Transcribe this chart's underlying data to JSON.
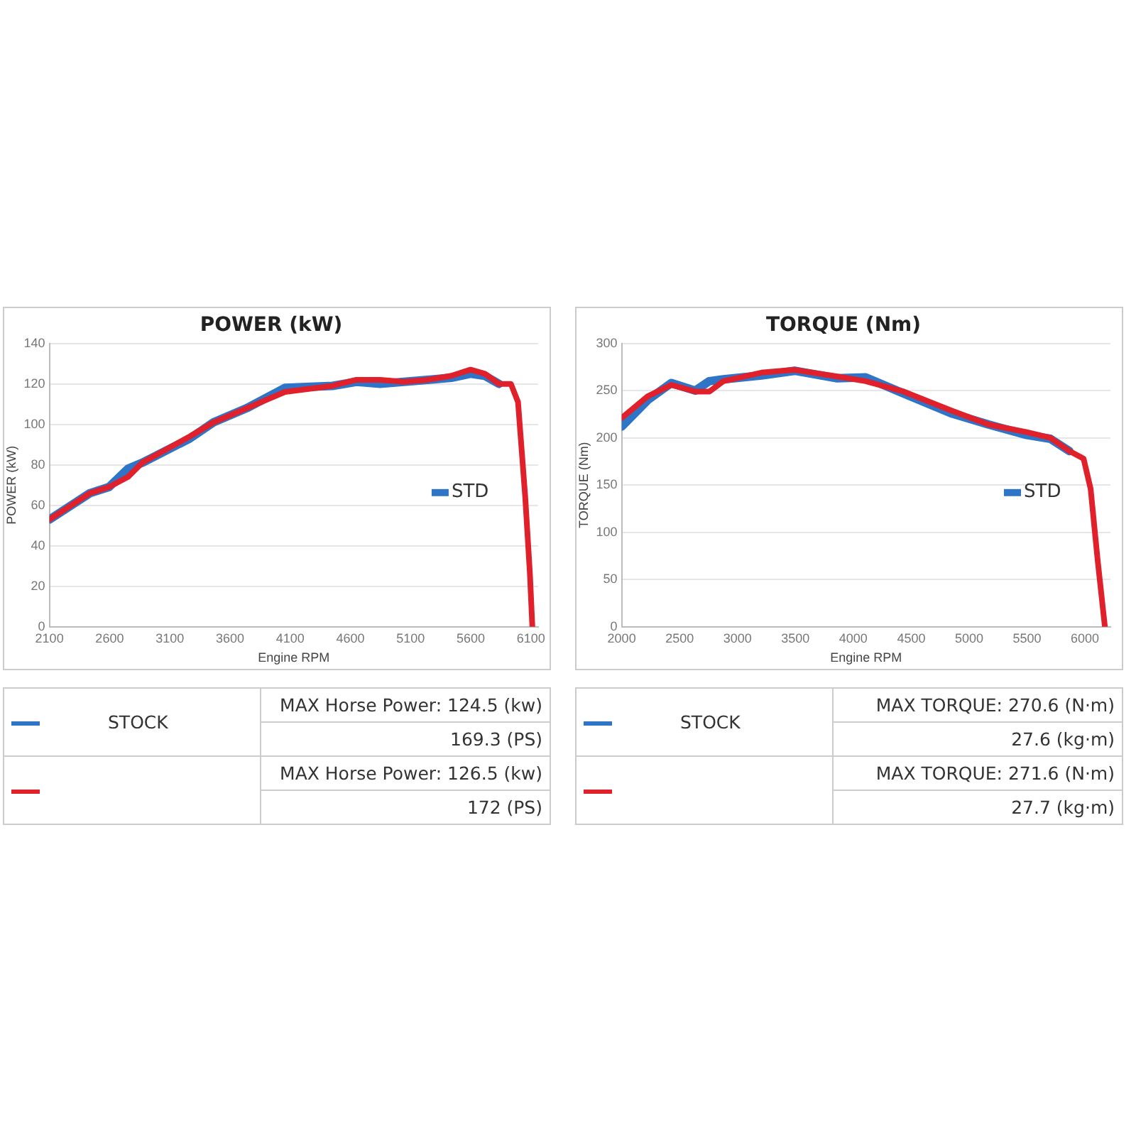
{
  "chart_data": [
    {
      "type": "line",
      "title": "POWER (kW)",
      "xlabel": "Engine RPM",
      "ylabel": "POWER (kW)",
      "xlim": [
        2100,
        6160
      ],
      "xticks": [
        2100,
        2600,
        3100,
        3600,
        4100,
        4600,
        5100,
        5600,
        6100
      ],
      "ylim": [
        0,
        140
      ],
      "yticks": [
        0,
        20,
        40,
        60,
        80,
        100,
        120,
        140
      ],
      "grid": "y",
      "legend": "bottom right",
      "marker": "none",
      "line_style": "solid",
      "x": [
        2100,
        2436,
        2594,
        2752,
        2870,
        3266,
        3464,
        3740,
        4057,
        4452,
        4650,
        4847,
        5045,
        5243,
        5440,
        5598,
        5717,
        5835,
        5934,
        5993,
        6053,
        6092,
        6112
      ],
      "series": [
        {
          "name": "STD",
          "color": "#2e75c8",
          "values": [
            53,
            66,
            69,
            78,
            81,
            93,
            101,
            108,
            118,
            119,
            121,
            120,
            121,
            122,
            123,
            125,
            124,
            120,
            null,
            null,
            null,
            null,
            null
          ]
        },
        {
          "color": "#e0202a",
          "values": [
            53,
            66,
            69,
            74,
            81,
            94,
            101,
            108,
            116,
            119,
            122,
            122,
            121,
            122,
            124,
            127,
            125,
            120,
            120,
            111,
            64,
            26,
            0
          ]
        }
      ],
      "annotations": [
        "STOCK",
        "MAX Horse Power: 124.5 (kw)",
        "169.3 (PS)",
        "MAX Horse Power: 126.5 (kw)",
        "172 (PS)"
      ]
    },
    {
      "type": "line",
      "title": "TORQUE (Nm)",
      "xlabel": "Engine RPM",
      "ylabel": "TORQUE (Nm)",
      "xlim": [
        2000,
        6220
      ],
      "xticks": [
        2000,
        2500,
        3000,
        3500,
        4000,
        4500,
        5000,
        5500,
        6000
      ],
      "ylim": [
        0,
        300
      ],
      "yticks": [
        0,
        50,
        100,
        150,
        200,
        250,
        300
      ],
      "grid": "y",
      "legend": "bottom right",
      "marker": "none",
      "line_style": "solid",
      "x": [
        2000,
        2225,
        2429,
        2634,
        2757,
        2879,
        3207,
        3493,
        3861,
        4106,
        4434,
        4843,
        5170,
        5497,
        5701,
        5865,
        5988,
        6049,
        6110,
        6172
      ],
      "series": [
        {
          "name": "STD",
          "color": "#2e75c8",
          "values": [
            212,
            240,
            258,
            250,
            260,
            262,
            266,
            271,
            263,
            264,
            247,
            226,
            214,
            203,
            199,
            186,
            null,
            null,
            null,
            null
          ]
        },
        {
          "color": "#e0202a",
          "values": [
            221,
            244,
            256,
            249,
            249,
            260,
            269,
            272,
            265,
            260,
            249,
            229,
            214,
            206,
            200,
            186,
            178,
            146,
            70,
            0
          ]
        }
      ],
      "annotations": [
        "STOCK",
        "MAX TORQUE: 270.6 (N·m)",
        "27.6 (kg·m)",
        "MAX TORQUE: 271.6 (N·m)",
        "27.7 (kg·m)"
      ]
    }
  ]
}
